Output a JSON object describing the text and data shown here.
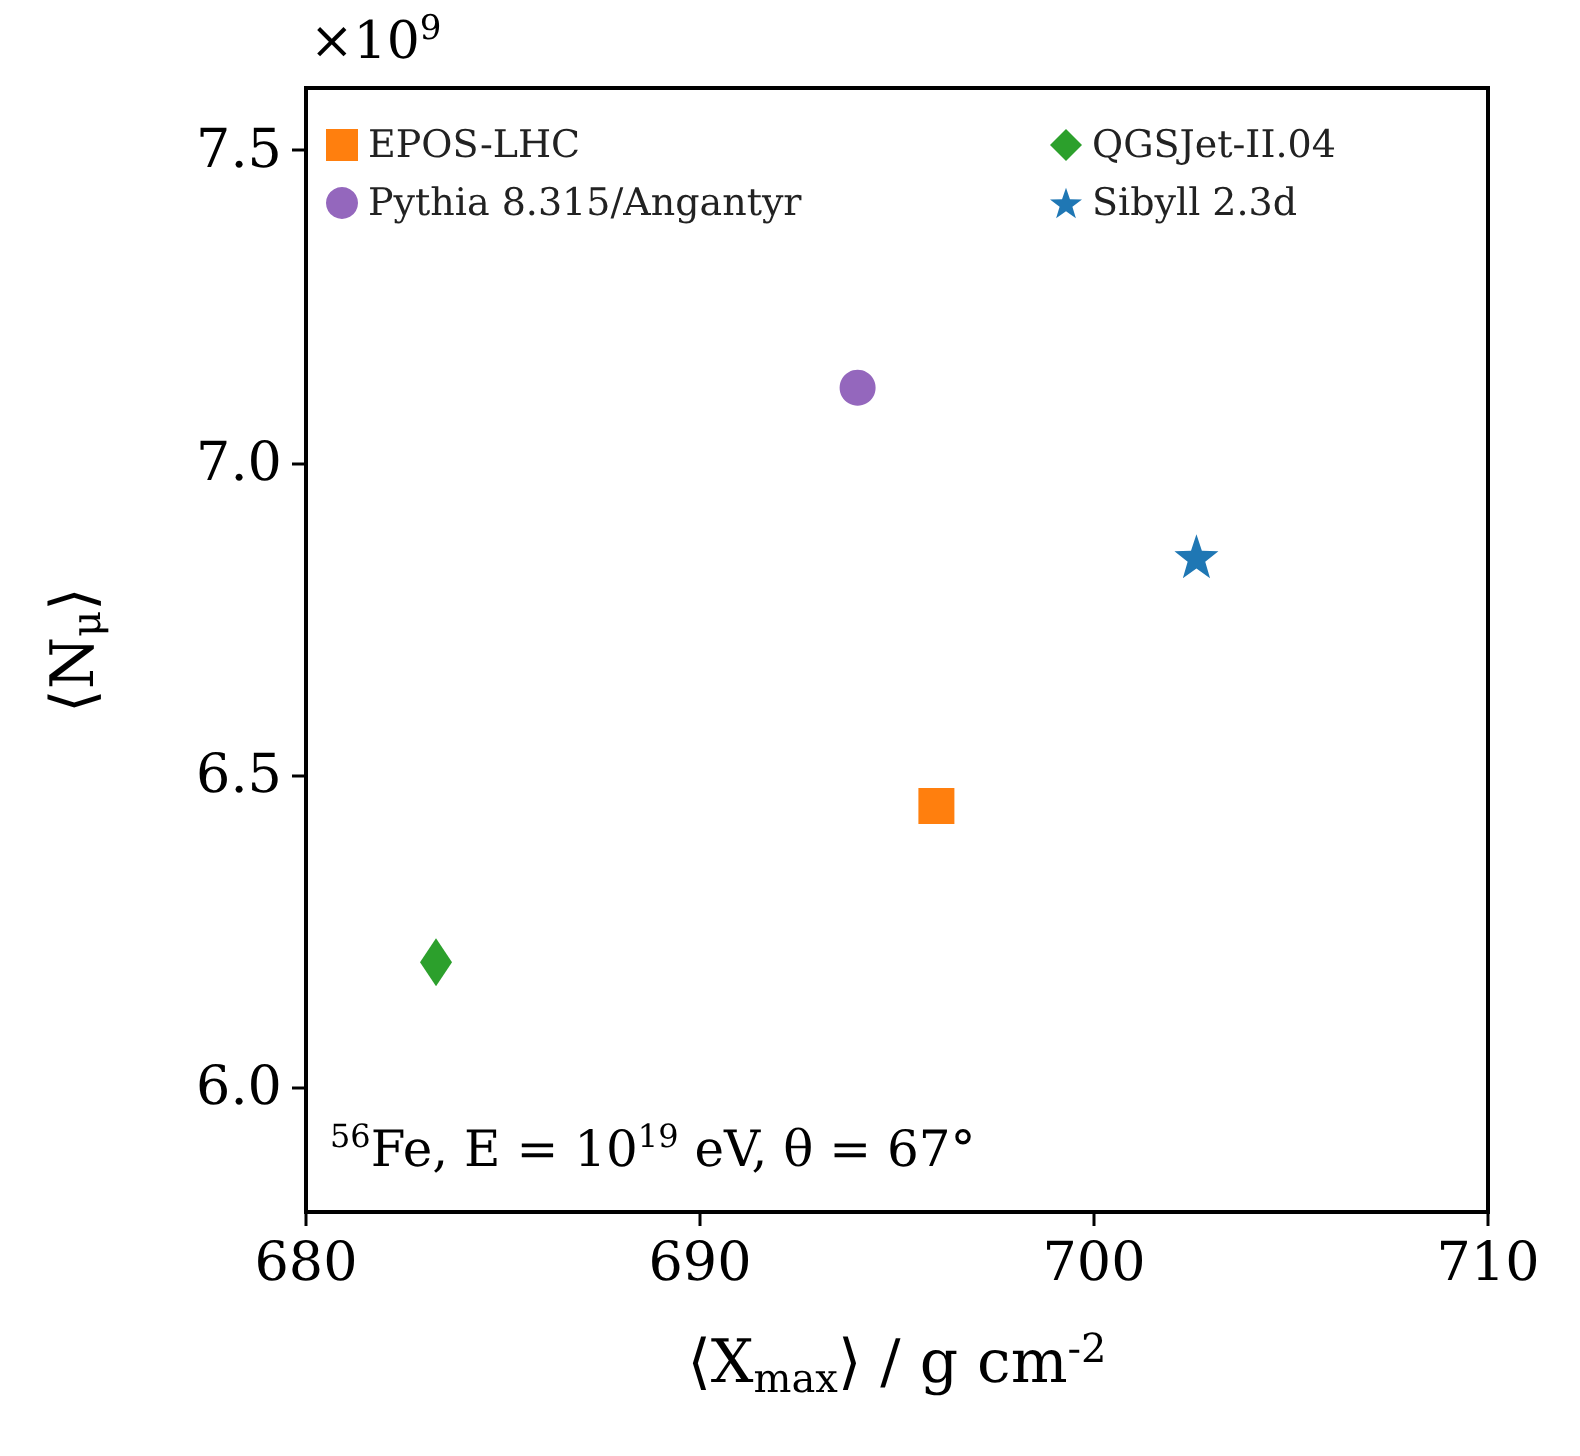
{
  "chart_data": {
    "type": "scatter",
    "xlabel": "⟨X$_{max}$⟩ / g cm$^{-2}$",
    "ylabel": "⟨N$_{μ}$⟩",
    "annotations": [
      "×10$^{9}$",
      "$^{56}$Fe, E = 10$^{19}$ eV, θ = 67°"
    ],
    "series": [
      {
        "name": "EPOS-LHC",
        "color": "#ff7f0e",
        "marker": "square",
        "x": [
          696.0
        ],
        "values": [
          6.45
        ]
      },
      {
        "name": "Pythia 8.315/Angantyr",
        "color": "#9467bd",
        "marker": "circle",
        "x": [
          694.0
        ],
        "values": [
          7.12
        ]
      },
      {
        "name": "QGSJet-II.04",
        "color": "#2ca02c",
        "marker": "diamond",
        "x": [
          683.3
        ],
        "values": [
          6.2
        ]
      },
      {
        "name": "Sibyll 2.3d",
        "color": "#1f77b4",
        "marker": "star",
        "x": [
          702.6
        ],
        "values": [
          6.85
        ]
      }
    ],
    "xlim": [
      680,
      710
    ],
    "xticks": [
      680,
      690,
      700,
      710
    ],
    "ylim": [
      5.8,
      7.6
    ],
    "yticks": [
      {
        "value": 6,
        "label": "6.0"
      },
      {
        "value": 6.5,
        "label": "6.5"
      },
      {
        "value": 7,
        "label": "7.0"
      },
      {
        "value": 7.5,
        "label": "7.5"
      }
    ],
    "grid": false,
    "legend": "top"
  }
}
